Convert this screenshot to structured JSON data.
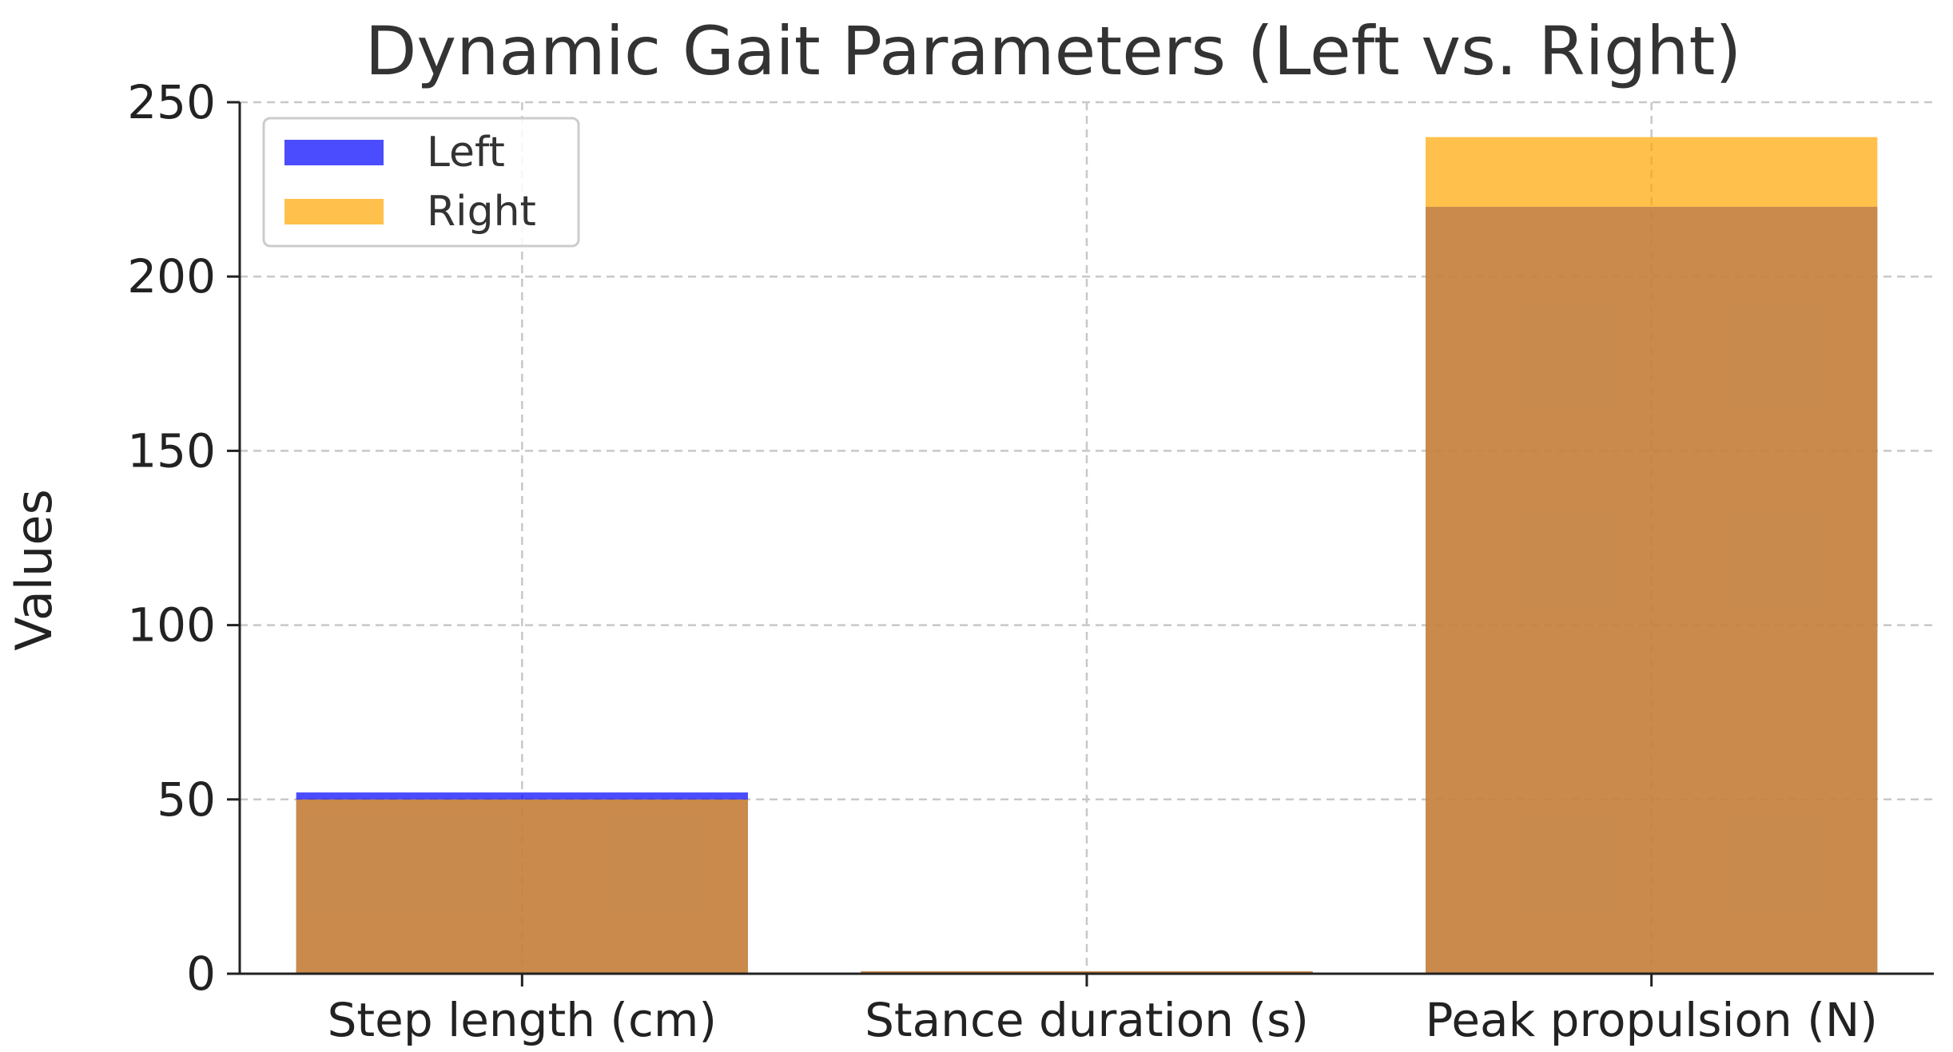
{
  "chart_data": {
    "type": "bar",
    "title": "Dynamic Gait Parameters (Left vs. Right)",
    "xlabel": "",
    "ylabel": "Values",
    "categories": [
      "Step length (cm)",
      "Stance duration (s)",
      "Peak propulsion (N)"
    ],
    "series": [
      {
        "name": "Left",
        "values": [
          52,
          0.7,
          220
        ],
        "color": "#0000ff",
        "alpha": 0.7
      },
      {
        "name": "Right",
        "values": [
          50,
          0.72,
          240
        ],
        "color": "#ffa500",
        "alpha": 0.7
      }
    ],
    "ylim": [
      0,
      250
    ],
    "yticks": [
      0,
      50,
      100,
      150,
      200,
      250
    ],
    "grid": true,
    "legend_position": "top-left",
    "bar_mode": "overlay"
  }
}
